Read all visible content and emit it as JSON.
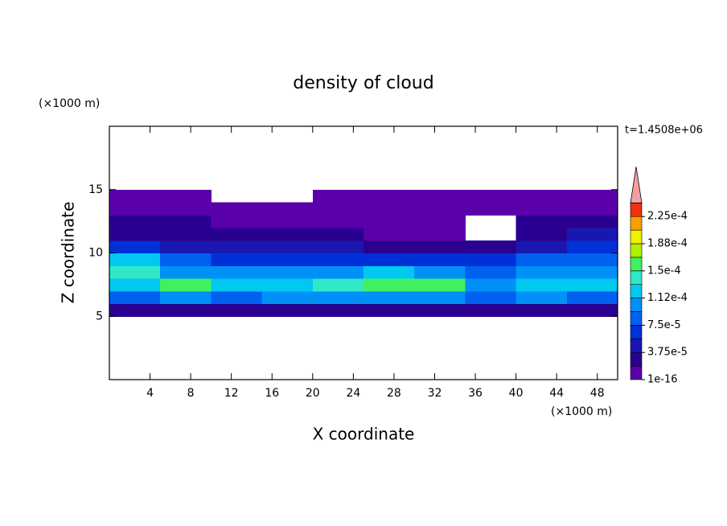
{
  "chart_data": {
    "type": "contour",
    "title": "density of cloud",
    "xlabel": "X coordinate",
    "ylabel": "Z coordinate",
    "x_unit": "(×1000 m)",
    "y_unit": "(×1000 m)",
    "annotation": "t=1.4508e+06",
    "xlim": [
      0,
      50
    ],
    "ylim": [
      0,
      20
    ],
    "xticks": [
      4,
      8,
      12,
      16,
      20,
      24,
      28,
      32,
      36,
      40,
      44,
      48
    ],
    "yticks": [
      5,
      10,
      15
    ],
    "x": [
      2.5,
      7.5,
      12.5,
      17.5,
      22.5,
      27.5,
      32.5,
      37.5,
      42.5,
      47.5
    ],
    "y": [
      5.5,
      6.5,
      7.5,
      8.5,
      9.5,
      10.5,
      11.5,
      12.5,
      13.5,
      14.5
    ],
    "z": [
      [
        3e-05,
        3e-05,
        3.5e-05,
        3e-05,
        3e-05,
        3e-05,
        3e-05,
        3e-05,
        3e-05,
        3e-05
      ],
      [
        9e-05,
        0.0001,
        9e-05,
        0.0001,
        0.0001,
        0.00011,
        0.0001,
        9e-05,
        0.0001,
        9e-05
      ],
      [
        0.00013,
        0.00016,
        0.00012,
        0.00013,
        0.00014,
        0.00016,
        0.00015,
        0.00011,
        0.00013,
        0.00012
      ],
      [
        0.00014,
        0.00011,
        0.0001,
        0.0001,
        0.00011,
        0.00012,
        0.00011,
        9e-05,
        0.0001,
        0.0001
      ],
      [
        0.00013,
        8e-05,
        6e-05,
        6e-05,
        7e-05,
        6e-05,
        6e-05,
        7e-05,
        8e-05,
        9e-05
      ],
      [
        6e-05,
        5e-05,
        4e-05,
        4e-05,
        4e-05,
        3e-05,
        2.5e-05,
        2e-05,
        5e-05,
        6e-05
      ],
      [
        3e-05,
        3e-05,
        2e-05,
        2e-05,
        2e-05,
        1e-05,
        5e-06,
        null,
        3e-05,
        4e-05
      ],
      [
        2e-05,
        2e-05,
        1e-05,
        1e-05,
        1e-05,
        5e-06,
        5e-06,
        null,
        2e-05,
        2e-05
      ],
      [
        1e-05,
        1e-05,
        5e-06,
        5e-06,
        5e-06,
        5e-06,
        5e-06,
        5e-06,
        5e-06,
        1e-05
      ],
      [
        5e-06,
        5e-06,
        null,
        null,
        5e-06,
        5e-06,
        5e-06,
        5e-06,
        5e-06,
        5e-06
      ]
    ],
    "levels": [
      1e-16,
      1.875e-05,
      3.75e-05,
      5.625e-05,
      7.5e-05,
      9.375e-05,
      0.0001125,
      0.00013125,
      0.00015,
      0.00016875,
      0.0001875,
      0.00020625,
      0.000225
    ],
    "colors": [
      "#5a00aa",
      "#2a0090",
      "#1818b0",
      "#0030d8",
      "#0060f0",
      "#0090f8",
      "#00c8f0",
      "#30e8c8",
      "#40f060",
      "#b0f000",
      "#f0f000",
      "#f8a000",
      "#f03010"
    ],
    "over_color": "#f4a0a0",
    "colorbar_ticks": [
      {
        "value": 1e-16,
        "label": "1e-16"
      },
      {
        "value": 3.75e-05,
        "label": "3.75e-5"
      },
      {
        "value": 7.5e-05,
        "label": "7.5e-5"
      },
      {
        "value": 0.0001125,
        "label": "1.12e-4"
      },
      {
        "value": 0.00015,
        "label": "1.5e-4"
      },
      {
        "value": 0.0001875,
        "label": "1.88e-4"
      },
      {
        "value": 0.000225,
        "label": "2.25e-4"
      }
    ]
  }
}
